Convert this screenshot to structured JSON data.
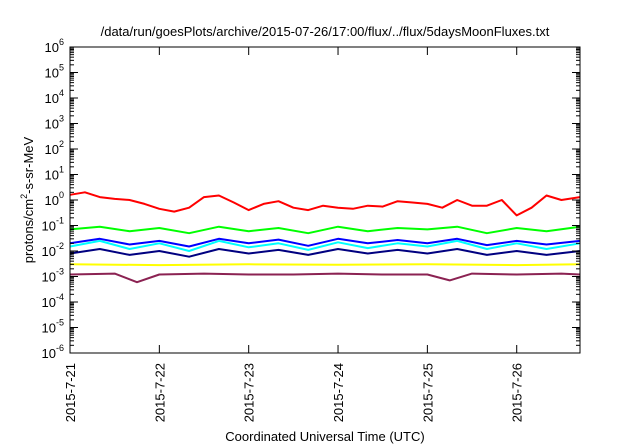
{
  "chart_data": {
    "type": "line",
    "title": "/data/run/goesPlots/archive/2015-07-26/17:00/flux/../flux/5daysMoonFluxes.txt",
    "xlabel": "Coordinated Universal Time (UTC)",
    "ylabel": {
      "prefix": "protons/cm",
      "superscript": "2",
      "suffix": "-s-sr-MeV"
    },
    "y_scale": "log",
    "ylim": [
      1e-06,
      1000000.0
    ],
    "y_ticks": [
      {
        "value": 1e-06,
        "base": "10",
        "exp": "-6"
      },
      {
        "value": 1e-05,
        "base": "10",
        "exp": "-5"
      },
      {
        "value": 0.0001,
        "base": "10",
        "exp": "-4"
      },
      {
        "value": 0.001,
        "base": "10",
        "exp": "-3"
      },
      {
        "value": 0.01,
        "base": "10",
        "exp": "-2"
      },
      {
        "value": 0.1,
        "base": "10",
        "exp": "-1"
      },
      {
        "value": 1,
        "base": "10",
        "exp": "0"
      },
      {
        "value": 10,
        "base": "10",
        "exp": "1"
      },
      {
        "value": 100,
        "base": "10",
        "exp": "2"
      },
      {
        "value": 1000,
        "base": "10",
        "exp": "3"
      },
      {
        "value": 10000,
        "base": "10",
        "exp": "4"
      },
      {
        "value": 100000,
        "base": "10",
        "exp": "5"
      },
      {
        "value": 1000000,
        "base": "10",
        "exp": "6"
      }
    ],
    "xlim": [
      "2015-07-21",
      "2015-07-26 17:00"
    ],
    "x_ticks": [
      {
        "date": "2015-07-21",
        "label": "2015-7-21"
      },
      {
        "date": "2015-07-22",
        "label": "2015-7-22"
      },
      {
        "date": "2015-07-23",
        "label": "2015-7-23"
      },
      {
        "date": "2015-07-24",
        "label": "2015-7-24"
      },
      {
        "date": "2015-07-25",
        "label": "2015-7-25"
      },
      {
        "date": "2015-07-26",
        "label": "2015-7-26"
      }
    ],
    "grid": false,
    "series": [
      {
        "color": "#ff0000",
        "x": [
          "2015-07-21 00:00",
          "2015-07-21 04:00",
          "2015-07-21 08:00",
          "2015-07-21 12:00",
          "2015-07-21 16:00",
          "2015-07-21 20:00",
          "2015-07-22 00:00",
          "2015-07-22 04:00",
          "2015-07-22 08:00",
          "2015-07-22 12:00",
          "2015-07-22 16:00",
          "2015-07-22 20:00",
          "2015-07-23 00:00",
          "2015-07-23 04:00",
          "2015-07-23 08:00",
          "2015-07-23 12:00",
          "2015-07-23 16:00",
          "2015-07-23 20:00",
          "2015-07-24 00:00",
          "2015-07-24 04:00",
          "2015-07-24 08:00",
          "2015-07-24 12:00",
          "2015-07-24 16:00",
          "2015-07-24 20:00",
          "2015-07-25 00:00",
          "2015-07-25 04:00",
          "2015-07-25 08:00",
          "2015-07-25 12:00",
          "2015-07-25 16:00",
          "2015-07-25 20:00",
          "2015-07-26 00:00",
          "2015-07-26 04:00",
          "2015-07-26 08:00",
          "2015-07-26 12:00",
          "2015-07-26 17:00"
        ],
        "values": [
          1.6,
          2.0,
          1.3,
          1.1,
          1.0,
          0.7,
          0.45,
          0.35,
          0.5,
          1.3,
          1.5,
          0.8,
          0.4,
          0.7,
          0.9,
          0.5,
          0.4,
          0.6,
          0.5,
          0.45,
          0.6,
          0.55,
          0.9,
          0.8,
          0.7,
          0.5,
          1.0,
          0.6,
          0.6,
          1.0,
          0.25,
          0.5,
          1.5,
          1.0,
          1.3
        ]
      },
      {
        "color": "#00ff00",
        "x": [
          "2015-07-21 00:00",
          "2015-07-21 08:00",
          "2015-07-21 16:00",
          "2015-07-22 00:00",
          "2015-07-22 08:00",
          "2015-07-22 16:00",
          "2015-07-23 00:00",
          "2015-07-23 08:00",
          "2015-07-23 16:00",
          "2015-07-24 00:00",
          "2015-07-24 08:00",
          "2015-07-24 16:00",
          "2015-07-25 00:00",
          "2015-07-25 08:00",
          "2015-07-25 16:00",
          "2015-07-26 00:00",
          "2015-07-26 08:00",
          "2015-07-26 17:00"
        ],
        "values": [
          0.07,
          0.09,
          0.06,
          0.08,
          0.05,
          0.09,
          0.06,
          0.08,
          0.05,
          0.09,
          0.06,
          0.08,
          0.07,
          0.09,
          0.05,
          0.08,
          0.06,
          0.09
        ]
      },
      {
        "color": "#00ffff",
        "x": [
          "2015-07-21 00:00",
          "2015-07-21 08:00",
          "2015-07-21 16:00",
          "2015-07-22 00:00",
          "2015-07-22 08:00",
          "2015-07-22 16:00",
          "2015-07-23 00:00",
          "2015-07-23 08:00",
          "2015-07-23 16:00",
          "2015-07-24 00:00",
          "2015-07-24 08:00",
          "2015-07-24 16:00",
          "2015-07-25 00:00",
          "2015-07-25 08:00",
          "2015-07-25 16:00",
          "2015-07-26 00:00",
          "2015-07-26 08:00",
          "2015-07-26 17:00"
        ],
        "values": [
          0.015,
          0.025,
          0.012,
          0.02,
          0.01,
          0.025,
          0.014,
          0.02,
          0.011,
          0.022,
          0.013,
          0.02,
          0.015,
          0.025,
          0.012,
          0.02,
          0.012,
          0.02
        ]
      },
      {
        "color": "#0000ff",
        "x": [
          "2015-07-21 00:00",
          "2015-07-21 08:00",
          "2015-07-21 16:00",
          "2015-07-22 00:00",
          "2015-07-22 08:00",
          "2015-07-22 16:00",
          "2015-07-23 00:00",
          "2015-07-23 08:00",
          "2015-07-23 16:00",
          "2015-07-24 00:00",
          "2015-07-24 08:00",
          "2015-07-24 16:00",
          "2015-07-25 00:00",
          "2015-07-25 08:00",
          "2015-07-25 16:00",
          "2015-07-26 00:00",
          "2015-07-26 08:00",
          "2015-07-26 17:00"
        ],
        "values": [
          0.02,
          0.03,
          0.018,
          0.025,
          0.015,
          0.03,
          0.02,
          0.028,
          0.016,
          0.03,
          0.02,
          0.027,
          0.02,
          0.03,
          0.017,
          0.025,
          0.018,
          0.025
        ]
      },
      {
        "color": "#000080",
        "x": [
          "2015-07-21 00:00",
          "2015-07-21 08:00",
          "2015-07-21 16:00",
          "2015-07-22 00:00",
          "2015-07-22 08:00",
          "2015-07-22 16:00",
          "2015-07-23 00:00",
          "2015-07-23 08:00",
          "2015-07-23 16:00",
          "2015-07-24 00:00",
          "2015-07-24 08:00",
          "2015-07-24 16:00",
          "2015-07-25 00:00",
          "2015-07-25 08:00",
          "2015-07-25 16:00",
          "2015-07-26 00:00",
          "2015-07-26 08:00",
          "2015-07-26 17:00"
        ],
        "values": [
          0.008,
          0.012,
          0.007,
          0.01,
          0.006,
          0.012,
          0.008,
          0.011,
          0.007,
          0.012,
          0.008,
          0.011,
          0.008,
          0.012,
          0.007,
          0.01,
          0.007,
          0.01
        ]
      },
      {
        "color": "#ffff00",
        "x": [
          "2015-07-21 00:00",
          "2015-07-22 00:00",
          "2015-07-23 00:00",
          "2015-07-24 00:00",
          "2015-07-25 00:00",
          "2015-07-26 00:00",
          "2015-07-26 17:00"
        ],
        "values": [
          0.003,
          0.0028,
          0.003,
          0.0029,
          0.003,
          0.0028,
          0.003
        ]
      },
      {
        "color": "#8b2252",
        "x": [
          "2015-07-21 00:00",
          "2015-07-21 12:00",
          "2015-07-21 18:00",
          "2015-07-22 00:00",
          "2015-07-22 12:00",
          "2015-07-23 00:00",
          "2015-07-23 12:00",
          "2015-07-24 00:00",
          "2015-07-24 12:00",
          "2015-07-25 00:00",
          "2015-07-25 06:00",
          "2015-07-25 12:00",
          "2015-07-26 00:00",
          "2015-07-26 12:00",
          "2015-07-26 17:00"
        ],
        "values": [
          0.0012,
          0.0013,
          0.0006,
          0.0012,
          0.0013,
          0.0012,
          0.0012,
          0.0013,
          0.0012,
          0.0012,
          0.0007,
          0.0013,
          0.0012,
          0.0013,
          0.0012
        ]
      }
    ]
  }
}
